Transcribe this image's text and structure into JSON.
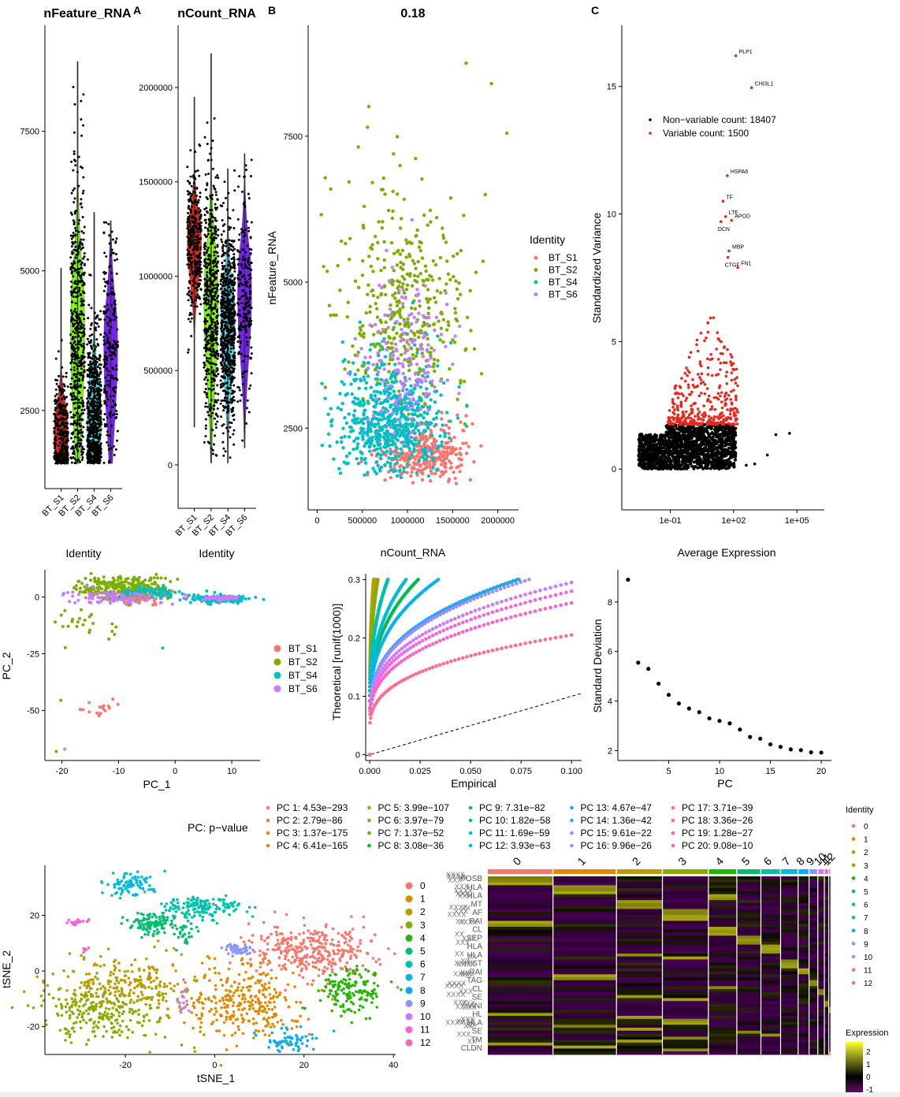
{
  "panel_labels": [
    "A",
    "B",
    "C"
  ],
  "identities": [
    "BT_S1",
    "BT_S2",
    "BT_S4",
    "BT_S6"
  ],
  "identity_colors": {
    "BT_S1": "#F8766D",
    "BT_S2": "#7CAE00",
    "BT_S4": "#00BFC4",
    "BT_S6": "#C77CFF"
  },
  "violin_colors": {
    "BT_S1": "#E8271A",
    "BT_S2": "#7CFC00",
    "BT_S4": "#3FE8F0",
    "BT_S6": "#7A1FF7"
  },
  "chart_data": [
    {
      "id": "violin-nfeature",
      "type": "violin",
      "title": "nFeature_RNA",
      "xlabel": "Identity",
      "ylabel": "",
      "categories": [
        "BT_S1",
        "BT_S2",
        "BT_S4",
        "BT_S6"
      ],
      "yticks": [
        2500,
        5000,
        7500
      ],
      "ylim": [
        1100,
        9400
      ],
      "groups": [
        {
          "name": "BT_S1",
          "min": 1550,
          "max": 5050,
          "median": 2050,
          "q1": 1750,
          "q3": 2550,
          "n": 320
        },
        {
          "name": "BT_S2",
          "min": 1550,
          "max": 8750,
          "median": 3900,
          "q1": 2800,
          "q3": 4700,
          "n": 520
        },
        {
          "name": "BT_S4",
          "min": 1550,
          "max": 6050,
          "median": 2300,
          "q1": 1900,
          "q3": 3000,
          "n": 700
        },
        {
          "name": "BT_S6",
          "min": 1550,
          "max": 5900,
          "median": 3600,
          "q1": 2700,
          "q3": 4200,
          "n": 220
        }
      ]
    },
    {
      "id": "violin-ncount",
      "type": "violin",
      "title": "nCount_RNA",
      "xlabel": "Identity",
      "ylabel": "",
      "categories": [
        "BT_S1",
        "BT_S2",
        "BT_S4",
        "BT_S6"
      ],
      "yticks": [
        0,
        500000,
        1000000,
        1500000,
        2000000
      ],
      "ylim": [
        -230000,
        2330000
      ],
      "groups": [
        {
          "name": "BT_S1",
          "min": 200000,
          "max": 1950000,
          "median": 1180000,
          "q1": 1050000,
          "q3": 1300000,
          "n": 320
        },
        {
          "name": "BT_S2",
          "min": 10000,
          "max": 2180000,
          "median": 850000,
          "q1": 650000,
          "q3": 1100000,
          "n": 520
        },
        {
          "name": "BT_S4",
          "min": 10000,
          "max": 1570000,
          "median": 750000,
          "q1": 560000,
          "q3": 900000,
          "n": 700
        },
        {
          "name": "BT_S6",
          "min": 90000,
          "max": 1650000,
          "median": 900000,
          "q1": 700000,
          "q3": 1100000,
          "n": 220
        }
      ]
    },
    {
      "id": "feature-scatter",
      "type": "scatter",
      "title": "0.18",
      "xlabel": "nCount_RNA",
      "ylabel": "nFeature_RNA",
      "xticks": [
        0,
        500000,
        1000000,
        1500000,
        2000000
      ],
      "yticks": [
        2500,
        5000,
        7500
      ],
      "xlim": [
        -100000,
        2230000
      ],
      "ylim": [
        1100,
        9400
      ],
      "legend_title": "Identity",
      "legend_position": "right",
      "series": [
        {
          "name": "BT_S1",
          "x_center": 1200000,
          "x_sd": 250000,
          "y_center": 1900,
          "y_sd": 350,
          "n": 320
        },
        {
          "name": "BT_S2",
          "x_center": 950000,
          "x_sd": 350000,
          "y_center": 4000,
          "y_sd": 1200,
          "n": 420
        },
        {
          "name": "BT_S4",
          "x_center": 800000,
          "x_sd": 280000,
          "y_center": 2300,
          "y_sd": 650,
          "n": 650
        },
        {
          "name": "BT_S6",
          "x_center": 950000,
          "x_sd": 250000,
          "y_center": 3300,
          "y_sd": 900,
          "n": 170
        }
      ],
      "outliers": [
        {
          "series": "BT_S2",
          "x": 1650000,
          "y": 8750
        },
        {
          "series": "BT_S2",
          "x": 1930000,
          "y": 8400
        },
        {
          "series": "BT_S2",
          "x": 2100000,
          "y": 7550
        }
      ]
    },
    {
      "id": "variable-features",
      "type": "scatter",
      "title": "",
      "xlabel": "Average Expression",
      "ylabel": "Standardized Variance",
      "xscale": "log10",
      "xticks": [
        "1e-01",
        "1e+02",
        "1e+05"
      ],
      "xtick_values": [
        -1,
        2,
        5
      ],
      "yticks": [
        0,
        5,
        10,
        15
      ],
      "xlim": [
        -3.3,
        6.3
      ],
      "ylim": [
        -1.6,
        17.4
      ],
      "legend_position": "top-left",
      "legend": [
        {
          "label": "Non−variable count: 18407",
          "color": "#000000"
        },
        {
          "label": "Variable count: 1500",
          "color": "#E8281E"
        }
      ],
      "labeled_genes": [
        {
          "gene": "PLP1",
          "log10x": 2.1,
          "y": 16.2
        },
        {
          "gene": "CHI3L1",
          "log10x": 2.85,
          "y": 14.95
        },
        {
          "gene": "HSPA6",
          "log10x": 1.7,
          "y": 11.5
        },
        {
          "gene": "TF",
          "log10x": 1.5,
          "y": 10.5
        },
        {
          "gene": "LTF",
          "log10x": 1.62,
          "y": 9.9
        },
        {
          "gene": "APOD",
          "log10x": 1.9,
          "y": 9.75
        },
        {
          "gene": "DCN",
          "log10x": 1.4,
          "y": 9.7
        },
        {
          "gene": "MBP",
          "log10x": 1.78,
          "y": 8.55
        },
        {
          "gene": "CTGF",
          "log10x": 1.73,
          "y": 8.3
        },
        {
          "gene": "FN1",
          "log10x": 2.2,
          "y": 7.9
        }
      ],
      "nonvariable_max_y": 1.75,
      "extra_points": [
        [
          4.0,
          1.35
        ],
        [
          4.65,
          1.4
        ],
        [
          3.6,
          0.55
        ],
        [
          3.0,
          0.2
        ],
        [
          2.6,
          0.15
        ]
      ]
    },
    {
      "id": "pca",
      "type": "scatter",
      "title": "",
      "xlabel": "PC_1",
      "ylabel": "PC_2",
      "xticks": [
        -20,
        -10,
        0,
        10
      ],
      "yticks": [
        -50,
        -25,
        0
      ],
      "xlim": [
        -23,
        15
      ],
      "ylim": [
        -72,
        12
      ],
      "legend_position": "right",
      "series": [
        {
          "name": "BT_S1",
          "clusters": [
            [
              -7,
              0,
              3,
              1.5,
              120
            ],
            [
              -13,
              -50,
              2,
              4,
              16
            ]
          ]
        },
        {
          "name": "BT_S2",
          "clusters": [
            [
              -9,
              4,
              4,
              2.5,
              260
            ],
            [
              -15,
              -12,
              3,
              4,
              25
            ]
          ]
        },
        {
          "name": "BT_S4",
          "clusters": [
            [
              8,
              -1,
              2.4,
              0.8,
              200
            ],
            [
              -4,
              2,
              3,
              1.2,
              80
            ]
          ]
        },
        {
          "name": "BT_S6",
          "clusters": [
            [
              -11,
              0,
              4,
              1.5,
              90
            ],
            [
              8,
              -0.5,
              1.5,
              0.5,
              40
            ]
          ]
        }
      ],
      "outliers": [
        {
          "series": "BT_S2",
          "x": -21,
          "y": -68
        },
        {
          "series": "BT_S6",
          "x": -19.5,
          "y": -67
        },
        {
          "series": "BT_S2",
          "x": -20.2,
          "y": -45.5
        },
        {
          "series": "BT_S6",
          "x": -15.2,
          "y": -46.5
        },
        {
          "series": "BT_S4",
          "x": -2.2,
          "y": -22.5
        }
      ]
    },
    {
      "id": "jackstraw",
      "type": "line",
      "title": "",
      "xlabel": "Empirical",
      "ylabel": "Theoretical [runif(1000)]",
      "xticks": [
        0.0,
        0.025,
        0.05,
        0.075,
        0.1
      ],
      "xtick_labels": [
        "0.000",
        "0.025",
        "0.050",
        "0.075",
        "0.100"
      ],
      "yticks": [
        0.0,
        0.1,
        0.2,
        0.3
      ],
      "xlim": [
        -0.002,
        0.105
      ],
      "ylim": [
        -0.01,
        0.31
      ],
      "reference_line": "dashed y = x",
      "legend_title": "PC: p−value",
      "legend_position": "bottom",
      "series": [
        {
          "name": "PC 1: 4.53e−293",
          "color": "#F8766D",
          "xmax": 0.003
        },
        {
          "name": "PC 2: 2.79e−86",
          "color": "#E7851E",
          "xmax": 0.0025
        },
        {
          "name": "PC 3: 1.37e−175",
          "color": "#D09400",
          "xmax": 0.002
        },
        {
          "name": "PC 4: 6.41e−165",
          "color": "#B2A100",
          "xmax": 0.002
        },
        {
          "name": "PC 5: 3.99e−107",
          "color": "#89AC00",
          "xmax": 0.004
        },
        {
          "name": "PC 6: 3.97e−79",
          "color": "#45B500",
          "xmax": 0.009
        },
        {
          "name": "PC 7: 1.37e−52",
          "color": "#00BC51",
          "xmax": 0.024
        },
        {
          "name": "PC 8: 3.08e−36",
          "color": "#00C087",
          "xmax": 0.074
        },
        {
          "name": "PC 9: 7.31e−82",
          "color": "#00C0B2",
          "xmax": 0.009
        },
        {
          "name": "PC 10: 1.82e−58",
          "color": "#00BCD6",
          "xmax": 0.018
        },
        {
          "name": "PC 11: 1.69e−59",
          "color": "#00B3F2",
          "xmax": 0.034
        },
        {
          "name": "PC 12: 3.93e−63",
          "color": "#29A3FF",
          "xmax": 0.073
        },
        {
          "name": "PC 13: 4.67e−47",
          "color": "#9C8DFF",
          "xmax": 0.079
        },
        {
          "name": "PC 14: 1.36e−42",
          "color": "#D277FF",
          "xmax": 0.1,
          "yend": 0.295
        },
        {
          "name": "PC 15: 9.61e−22",
          "color": "#F265E7",
          "xmax": 0.1,
          "yend": 0.28
        },
        {
          "name": "PC 16: 9.96e−26",
          "color": "#FF61C7",
          "xmax": 0.1,
          "yend": 0.26
        },
        {
          "name": "PC 17: 3.71e−39",
          "color": "#FF6C91",
          "xmax": 0.1,
          "yend": 0.205
        }
      ],
      "legend_entries": [
        {
          "label": "PC 1: 4.53e−293",
          "color": "#F8766D"
        },
        {
          "label": "PC 2: 2.79e−86",
          "color": "#EE8043"
        },
        {
          "label": "PC 3: 1.37e−175",
          "color": "#DE8C00"
        },
        {
          "label": "PC 4: 6.41e−165",
          "color": "#CB9700"
        },
        {
          "label": "PC 5: 3.99e−107",
          "color": "#B3A000"
        },
        {
          "label": "PC 6: 3.97e−79",
          "color": "#96A900"
        },
        {
          "label": "PC 7: 1.37e−52",
          "color": "#6BB100"
        },
        {
          "label": "PC 8: 3.08e−36",
          "color": "#00B81F"
        },
        {
          "label": "PC 9: 7.31e−82",
          "color": "#00BC66"
        },
        {
          "label": "PC 10: 1.82e−58",
          "color": "#00BF92"
        },
        {
          "label": "PC 11: 1.69e−59",
          "color": "#00BFB7"
        },
        {
          "label": "PC 12: 3.93e−63",
          "color": "#00BCD8"
        },
        {
          "label": "PC 13: 4.67e−47",
          "color": "#00B4EF"
        },
        {
          "label": "PC 14: 1.36e−42",
          "color": "#35A2FF"
        },
        {
          "label": "PC 15: 9.61e−22",
          "color": "#9590FF"
        },
        {
          "label": "PC 16: 9.96e−26",
          "color": "#C77CFF"
        },
        {
          "label": "PC 17: 3.71e−39",
          "color": "#E76BF3"
        },
        {
          "label": "PC 18: 3.36e−26",
          "color": "#F962DD"
        },
        {
          "label": "PC 19: 1.28e−27",
          "color": "#FF62BC"
        },
        {
          "label": "PC 20: 9.08e−10",
          "color": "#FF6A98"
        }
      ]
    },
    {
      "id": "elbow",
      "type": "scatter",
      "title": "",
      "xlabel": "PC",
      "ylabel": "Standard Deviation",
      "xticks": [
        5,
        10,
        15,
        20
      ],
      "yticks": [
        2,
        4,
        6,
        8
      ],
      "xlim": [
        0,
        21
      ],
      "ylim": [
        1.6,
        9.3
      ],
      "x": [
        1,
        2,
        3,
        4,
        5,
        6,
        7,
        8,
        9,
        10,
        11,
        12,
        13,
        14,
        15,
        16,
        17,
        18,
        19,
        20
      ],
      "y": [
        8.9,
        5.55,
        5.3,
        4.7,
        4.25,
        3.9,
        3.7,
        3.55,
        3.3,
        3.2,
        3.1,
        2.85,
        2.55,
        2.48,
        2.25,
        2.15,
        2.05,
        2.02,
        1.93,
        1.92
      ]
    },
    {
      "id": "tsne",
      "type": "scatter",
      "title": "",
      "xlabel": "tSNE_1",
      "ylabel": "tSNE_2",
      "xticks": [
        -20,
        0,
        20,
        40
      ],
      "yticks": [
        -20,
        0,
        20
      ],
      "xlim": [
        -38,
        40.5
      ],
      "ylim": [
        -30,
        38
      ],
      "legend_position": "right",
      "series": [
        {
          "name": "0",
          "color": "#F8766D",
          "clusters": [
            [
              22,
              7,
              7,
              4.5,
              340
            ]
          ]
        },
        {
          "name": "1",
          "color": "#E18A00",
          "clusters": [
            [
              7,
              -11,
              6,
              7,
              300
            ]
          ]
        },
        {
          "name": "2",
          "color": "#BE9C00",
          "clusters": [
            [
              -20,
              -5,
              8,
              5,
              240
            ]
          ]
        },
        {
          "name": "3",
          "color": "#8CAB00",
          "clusters": [
            [
              -24,
              -15,
              8,
              5,
              230
            ]
          ]
        },
        {
          "name": "4",
          "color": "#24B700",
          "clusters": [
            [
              31,
              -7,
              3.5,
              4,
              150
            ]
          ]
        },
        {
          "name": "5",
          "color": "#00BE70",
          "clusters": [
            [
              -14,
              17,
              2.5,
              2,
              110
            ],
            [
              -7,
              14,
              1.5,
              3,
              30
            ]
          ]
        },
        {
          "name": "6",
          "color": "#00C1AB",
          "clusters": [
            [
              -3,
              23,
              4.5,
              2,
              150
            ]
          ]
        },
        {
          "name": "7",
          "color": "#00BBDA",
          "clusters": [
            [
              -19.5,
              31,
              3,
              2,
              90
            ]
          ]
        },
        {
          "name": "8",
          "color": "#00ACFC",
          "clusters": [
            [
              17,
              -25,
              3,
              2,
              60
            ]
          ]
        },
        {
          "name": "9",
          "color": "#8B93FF",
          "clusters": [
            [
              5,
              7.5,
              2,
              1,
              45
            ]
          ]
        },
        {
          "name": "10",
          "color": "#D575FE",
          "clusters": [
            [
              -7,
              -10,
              0.6,
              4,
              14
            ]
          ]
        },
        {
          "name": "11",
          "color": "#F962DD",
          "clusters": [
            [
              -30.5,
              17.5,
              1.2,
              0.6,
              20
            ]
          ]
        },
        {
          "name": "12",
          "color": "#FF65AC",
          "clusters": [
            [
              -29,
              7.7,
              0.5,
              0.4,
              10
            ]
          ]
        }
      ]
    },
    {
      "id": "heatmap",
      "type": "heatmap",
      "title": "",
      "column_groups": [
        "0",
        "1",
        "2",
        "3",
        "4",
        "5",
        "6",
        "7",
        "8",
        "9",
        "10",
        "11",
        "12"
      ],
      "column_group_weights": [
        30,
        29,
        21,
        21,
        13,
        11,
        9,
        8,
        5,
        4,
        3,
        2,
        1
      ],
      "row_gene_labels_visible": [
        "FOSB",
        "HLA",
        "HLA",
        "MT",
        "AF",
        "RAI",
        "CL",
        "SEP",
        "HLA",
        "HLA",
        "HIST",
        "RAI",
        "TAG",
        "CL",
        "SE",
        "ANI",
        "HL",
        "HLA",
        "SE",
        "TM",
        "CLDN"
      ],
      "color_scale": {
        "title": "Expression",
        "ticks": [
          -1,
          0,
          1,
          2
        ],
        "low": "#FF00FF",
        "mid": "#000000",
        "high": "#FFFF00"
      },
      "legend_title": "Identity",
      "legend_entries": [
        {
          "label": "0",
          "color": "#F8766D"
        },
        {
          "label": "1",
          "color": "#E18A00"
        },
        {
          "label": "2",
          "color": "#BE9C00"
        },
        {
          "label": "3",
          "color": "#8CAB00"
        },
        {
          "label": "4",
          "color": "#24B700"
        },
        {
          "label": "5",
          "color": "#00BE70"
        },
        {
          "label": "6",
          "color": "#00C1AB"
        },
        {
          "label": "7",
          "color": "#00BBDA"
        },
        {
          "label": "8",
          "color": "#00ACFC"
        },
        {
          "label": "9",
          "color": "#8B93FF"
        },
        {
          "label": "10",
          "color": "#D575FE"
        },
        {
          "label": "11",
          "color": "#F962DD"
        },
        {
          "label": "12",
          "color": "#FF65AC"
        }
      ]
    }
  ]
}
